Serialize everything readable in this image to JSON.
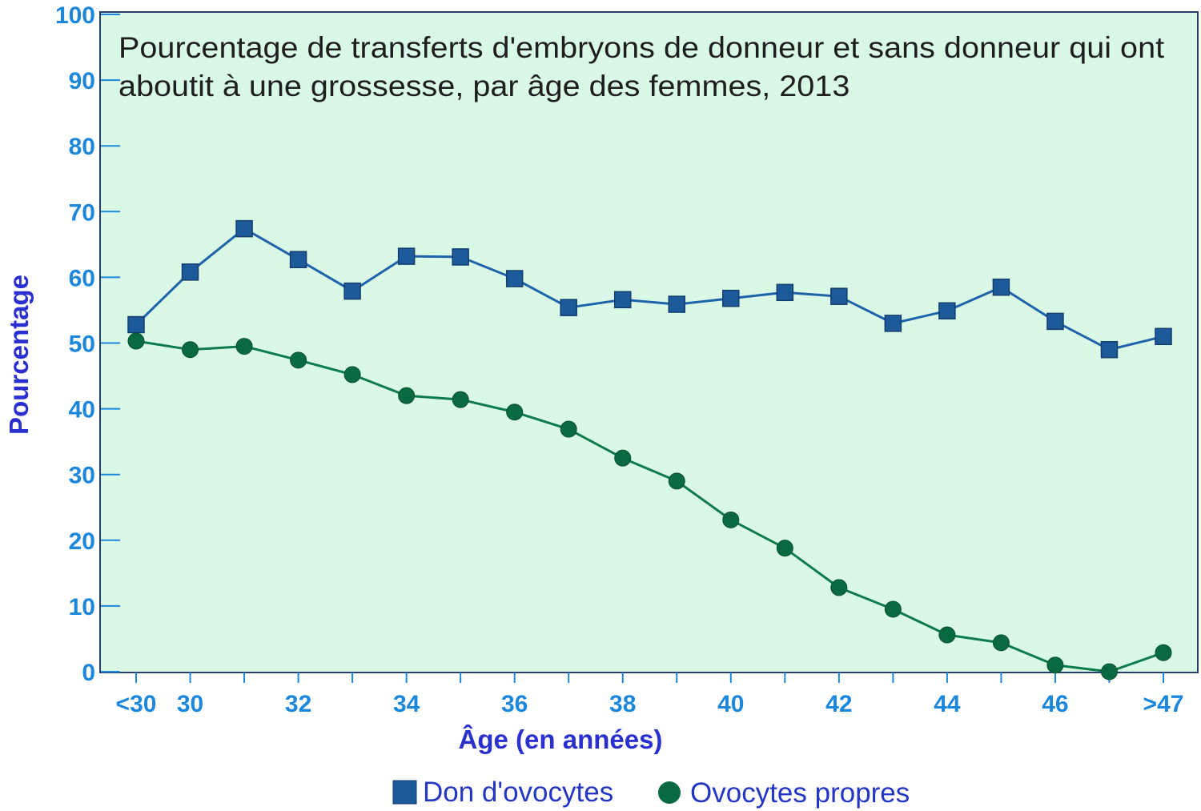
{
  "chart_data": {
    "type": "line",
    "title": "Pourcentage de transferts d'embryons de donneur et sans donneur qui ont aboutit à une grossesse, par âge des femmes, 2013",
    "xlabel": "Âge (en années)",
    "ylabel": "Pourcentage",
    "categories": [
      "<30",
      "30",
      "31",
      "32",
      "33",
      "34",
      "35",
      "36",
      "37",
      "38",
      "39",
      "40",
      "41",
      "42",
      "43",
      "44",
      "45",
      "46",
      "47",
      ">47"
    ],
    "x_tick_labels": [
      "<30",
      "30",
      "32",
      "34",
      "36",
      "38",
      "40",
      "42",
      "44",
      "46",
      ">47"
    ],
    "y_ticks": [
      0,
      10,
      20,
      30,
      40,
      50,
      60,
      70,
      80,
      90,
      100
    ],
    "ylim": [
      0,
      100
    ],
    "grid": false,
    "legend_position": "bottom",
    "series": [
      {
        "name": "Don d'ovocytes",
        "marker": "square",
        "color": "#1e62aa",
        "marker_color": "#1d5a9a",
        "values": [
          52.8,
          60.8,
          67.4,
          62.7,
          57.9,
          63.2,
          63.1,
          59.8,
          55.4,
          56.6,
          55.9,
          56.8,
          57.7,
          57.1,
          53.0,
          54.9,
          58.5,
          53.3,
          49.0,
          51.0
        ]
      },
      {
        "name": "Ovocytes propres",
        "marker": "circle",
        "color": "#0c7a4b",
        "marker_color": "#0a6a3f",
        "values": [
          50.3,
          49.0,
          49.5,
          47.4,
          45.2,
          42.0,
          41.4,
          39.5,
          36.9,
          32.5,
          29.0,
          23.1,
          18.8,
          12.8,
          9.5,
          5.6,
          4.4,
          1.0,
          0.0,
          2.9
        ]
      }
    ]
  },
  "colors": {
    "plot_background": "#d9f8e5",
    "axis": "#24406f",
    "ticks": "#1d88db"
  }
}
